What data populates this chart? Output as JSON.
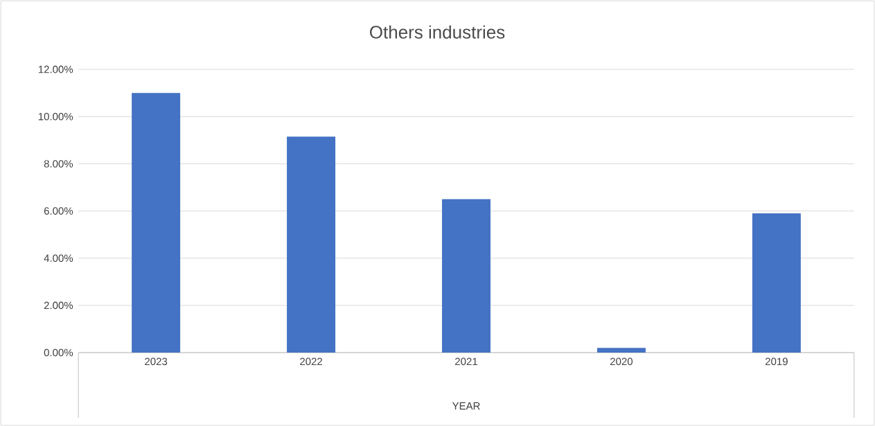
{
  "chart_data": {
    "type": "bar",
    "title": "Others industries",
    "xlabel": "YEAR",
    "categories": [
      "2023",
      "2022",
      "2021",
      "2020",
      "2019"
    ],
    "values": [
      11.0,
      9.15,
      6.5,
      0.2,
      5.9
    ],
    "color": "#4472c4",
    "ylim": [
      0,
      12
    ],
    "yticks": [
      {
        "value": 0,
        "label": "0.00%"
      },
      {
        "value": 2,
        "label": "2.00%"
      },
      {
        "value": 4,
        "label": "4.00%"
      },
      {
        "value": 6,
        "label": "6.00%"
      },
      {
        "value": 8,
        "label": "8.00%"
      },
      {
        "value": 10,
        "label": "10.00%"
      },
      {
        "value": 12,
        "label": "12.00%"
      }
    ],
    "grid": "y"
  }
}
